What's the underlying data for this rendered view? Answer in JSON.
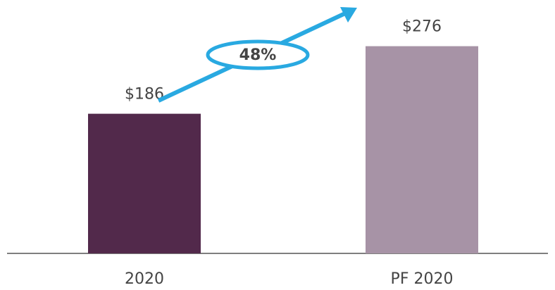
{
  "chart_data": {
    "type": "bar",
    "categories": [
      "2020",
      "PF 2020"
    ],
    "values": [
      186,
      276
    ],
    "value_labels": [
      "$186",
      "$276"
    ],
    "colors": [
      "#52294b",
      "#a793a6"
    ],
    "ylim": [
      0,
      300
    ],
    "annotation": "48%",
    "annotation_color": "#29a9e1"
  }
}
